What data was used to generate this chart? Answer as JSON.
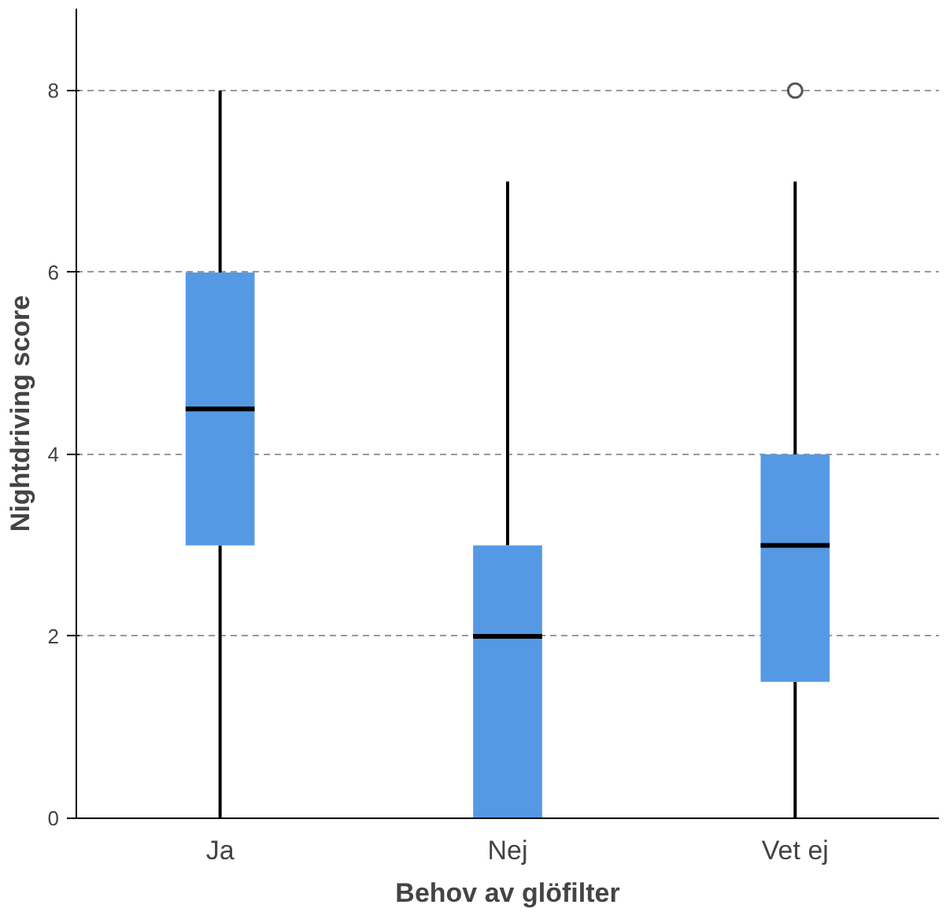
{
  "chart_data": {
    "type": "box",
    "xlabel": "Behov av glöfilter",
    "ylabel": "Nightdriving score",
    "categories": [
      "Ja",
      "Nej",
      "Vet ej"
    ],
    "boxes": [
      {
        "low": 0,
        "q1": 3,
        "median": 4.5,
        "q3": 6,
        "high": 8
      },
      {
        "low": 0,
        "q1": 0,
        "median": 2,
        "q3": 3,
        "high": 7
      },
      {
        "low": 0,
        "q1": 1.5,
        "median": 3,
        "q3": 4,
        "high": 7,
        "outliers": [
          8
        ]
      }
    ],
    "color": "#5599e4",
    "ylim": [
      0,
      8.9
    ],
    "yticks": [
      0,
      2,
      4,
      6,
      8
    ],
    "grid": "y"
  }
}
